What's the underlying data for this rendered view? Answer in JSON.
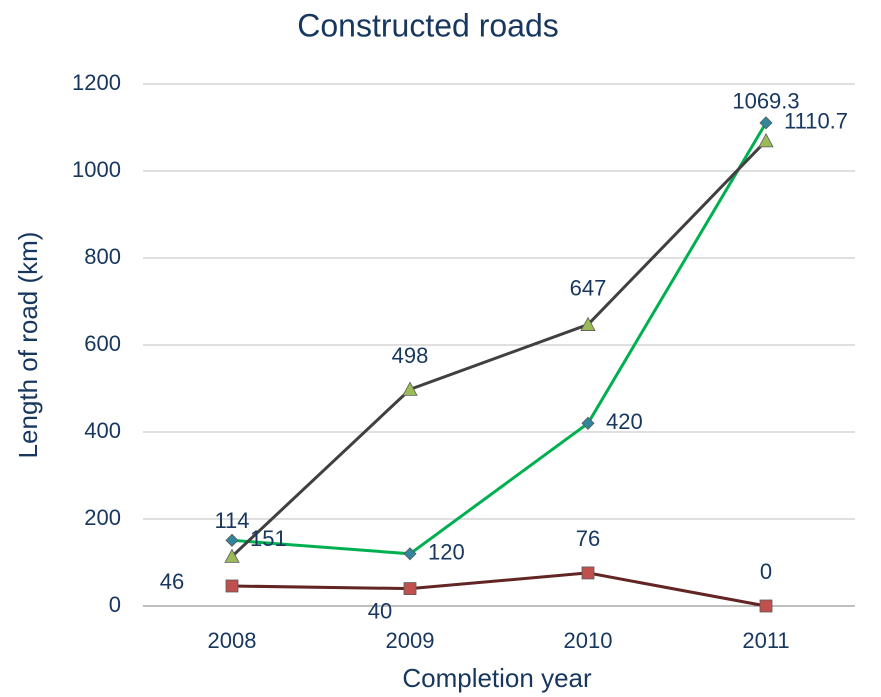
{
  "chart_data": {
    "type": "line",
    "title": "Constructed roads",
    "x_label": "Completion year",
    "y_label": "Length of road (km)",
    "categories": [
      "2008",
      "2009",
      "2010",
      "2011"
    ],
    "series": [
      {
        "color": "#00b050",
        "marker": "diamond",
        "marker_color": "#31859c",
        "values": [
          151,
          120,
          420,
          1110.7
        ]
      },
      {
        "color": "#404040",
        "marker": "triangle",
        "marker_color": "#9bbb59",
        "values": [
          114,
          498,
          647,
          1069.3
        ]
      },
      {
        "color": "#632523",
        "marker": "square",
        "marker_color": "#c0504d",
        "values": [
          46,
          40,
          76,
          0
        ]
      }
    ],
    "ylim": [
      0,
      1200
    ],
    "yticks": [
      0,
      200,
      400,
      600,
      800,
      1000,
      1200
    ],
    "grid": true
  }
}
